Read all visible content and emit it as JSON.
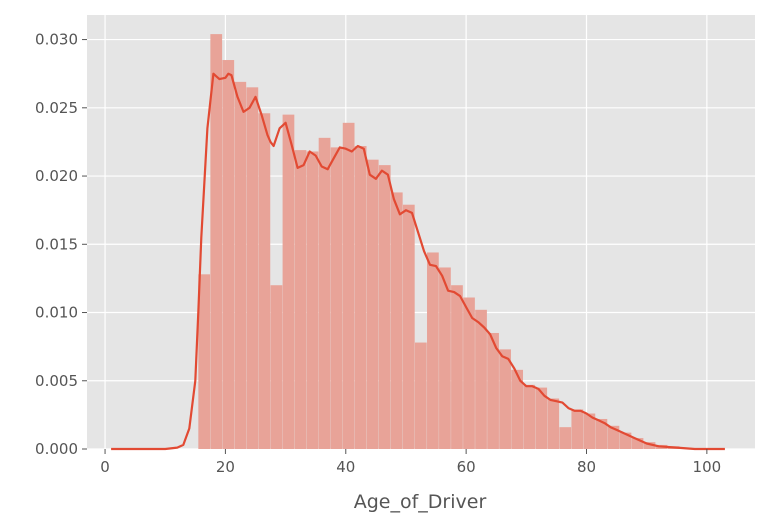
{
  "chart_data": {
    "type": "bar",
    "title": "",
    "xlabel": "Age_of_Driver",
    "ylabel": "",
    "xlim": [
      -3,
      108
    ],
    "ylim": [
      0,
      0.0318
    ],
    "grid": true,
    "legend": "none",
    "x_ticks": [
      0,
      20,
      40,
      60,
      80,
      100
    ],
    "x_tick_labels": [
      "0",
      "20",
      "40",
      "60",
      "80",
      "100"
    ],
    "y_ticks": [
      0,
      0.005,
      0.01,
      0.015,
      0.02,
      0.025,
      0.03
    ],
    "y_tick_labels": [
      "0.000",
      "0.005",
      "0.010",
      "0.015",
      "0.020",
      "0.025",
      "0.030"
    ],
    "histogram": {
      "bin_width": 1.95,
      "bins": [
        [
          15.5,
          0.0128
        ],
        [
          17.5,
          0.0304
        ],
        [
          19.5,
          0.0285
        ],
        [
          21.5,
          0.0269
        ],
        [
          23.5,
          0.0265
        ],
        [
          25.5,
          0.0246
        ],
        [
          27.5,
          0.012
        ],
        [
          29.5,
          0.0245
        ],
        [
          31.5,
          0.0219
        ],
        [
          33.5,
          0.0218
        ],
        [
          35.5,
          0.0228
        ],
        [
          37.5,
          0.0221
        ],
        [
          39.5,
          0.0239
        ],
        [
          41.5,
          0.0222
        ],
        [
          43.5,
          0.0212
        ],
        [
          45.5,
          0.0208
        ],
        [
          47.5,
          0.0188
        ],
        [
          49.5,
          0.0179
        ],
        [
          51.5,
          0.0078
        ],
        [
          53.5,
          0.0144
        ],
        [
          55.5,
          0.0133
        ],
        [
          57.5,
          0.012
        ],
        [
          59.5,
          0.0111
        ],
        [
          61.5,
          0.0102
        ],
        [
          63.5,
          0.0085
        ],
        [
          65.5,
          0.0073
        ],
        [
          67.5,
          0.0058
        ],
        [
          69.5,
          0.0047
        ],
        [
          71.5,
          0.0045
        ],
        [
          73.5,
          0.0037
        ],
        [
          75.5,
          0.0016
        ],
        [
          77.5,
          0.0029
        ],
        [
          79.5,
          0.0026
        ],
        [
          81.5,
          0.0022
        ],
        [
          83.5,
          0.0017
        ],
        [
          85.5,
          0.0012
        ],
        [
          87.5,
          0.0008
        ],
        [
          89.5,
          0.0005
        ],
        [
          91.5,
          0.0003
        ],
        [
          93.5,
          0.0002
        ],
        [
          95.5,
          0.0001
        ]
      ]
    },
    "kde": {
      "x": [
        1,
        10,
        12,
        13,
        14,
        15,
        15.5,
        16,
        17,
        18,
        18.5,
        19,
        20,
        20.5,
        21,
        22,
        23,
        24,
        25,
        26,
        27,
        27.5,
        28,
        29,
        30,
        31,
        32,
        33,
        34,
        35,
        36,
        37,
        38,
        39,
        40,
        41,
        42,
        43,
        44,
        45,
        46,
        47,
        48,
        49,
        50,
        51,
        52,
        53,
        54,
        55,
        56,
        57,
        58,
        59,
        60,
        61,
        62,
        63,
        64,
        65,
        66,
        67,
        68,
        69,
        70,
        71,
        72,
        73,
        74,
        75,
        76,
        77,
        78,
        79,
        80,
        81,
        82,
        83,
        84,
        85,
        86,
        87,
        88,
        90,
        92,
        95,
        98,
        103
      ],
      "y": [
        0,
        0,
        0.0001,
        0.0003,
        0.0015,
        0.005,
        0.01,
        0.0155,
        0.0235,
        0.0275,
        0.0273,
        0.0271,
        0.0272,
        0.0275,
        0.0274,
        0.0258,
        0.0247,
        0.025,
        0.0258,
        0.0245,
        0.023,
        0.0225,
        0.0222,
        0.0235,
        0.0239,
        0.0223,
        0.0206,
        0.0208,
        0.0218,
        0.0215,
        0.0207,
        0.0205,
        0.0213,
        0.0221,
        0.022,
        0.0218,
        0.0222,
        0.022,
        0.0201,
        0.0198,
        0.0204,
        0.0201,
        0.0183,
        0.0172,
        0.0175,
        0.0173,
        0.0159,
        0.0145,
        0.0135,
        0.0134,
        0.0127,
        0.0116,
        0.0115,
        0.0112,
        0.0104,
        0.0096,
        0.0093,
        0.0089,
        0.0084,
        0.0074,
        0.0068,
        0.0066,
        0.0059,
        0.005,
        0.0046,
        0.0046,
        0.0044,
        0.0039,
        0.0036,
        0.0035,
        0.0034,
        0.003,
        0.0028,
        0.0028,
        0.0026,
        0.0023,
        0.0021,
        0.0019,
        0.0016,
        0.0014,
        0.0012,
        0.001,
        0.0008,
        0.0004,
        0.0002,
        0.0001,
        0,
        0
      ]
    },
    "colors": {
      "background": "#e5e5e5",
      "grid": "#ffffff",
      "bars": "#e8a398",
      "kde": "#e24a33",
      "ticks": "#555555"
    }
  }
}
